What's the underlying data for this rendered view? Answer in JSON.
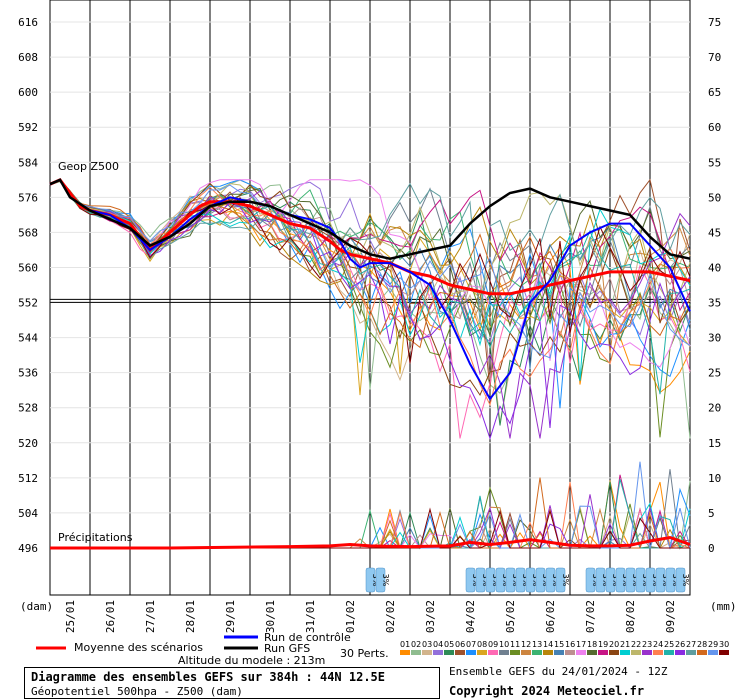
{
  "chart_data": {
    "type": "line",
    "title": "Diagramme des ensembles GEFS sur 384h : 44N 12.5E",
    "subtitle": "Géopotentiel 500hpa - Z500 (dam)",
    "run": "Ensemble GEFS du 24/01/2024 - 12Z",
    "copyright": "Copyright 2024 Meteociel.fr",
    "altitude": "Altitude du modele : 213m",
    "left_axis": {
      "unit": "(dam)",
      "range": [
        490,
        620
      ],
      "ticks": [
        "616",
        "608",
        "600",
        "592",
        "584",
        "576",
        "568",
        "560",
        "552",
        "544",
        "536",
        "528",
        "520",
        "512",
        "504",
        "496"
      ],
      "tick_values": [
        616,
        608,
        600,
        592,
        584,
        576,
        568,
        560,
        552,
        544,
        536,
        528,
        520,
        512,
        504,
        496
      ]
    },
    "right_axis": {
      "unit": "(mm)",
      "ticks": [
        "75",
        "70",
        "65",
        "60",
        "55",
        "50",
        "45",
        "40",
        "35",
        "30",
        "25",
        "20",
        "15",
        "10",
        "5",
        "0"
      ],
      "tick_values": [
        75,
        70,
        65,
        60,
        55,
        50,
        45,
        40,
        35,
        30,
        25,
        20,
        15,
        10,
        5,
        0
      ]
    },
    "x_axis": {
      "start_day": 0,
      "end_day": 16,
      "dates": [
        "25/01",
        "26/01",
        "27/01",
        "28/01",
        "29/01",
        "30/01",
        "31/01",
        "01/02",
        "02/02",
        "03/02",
        "04/02",
        "05/02",
        "06/02",
        "07/02",
        "08/02",
        "09/02"
      ],
      "date_days": [
        0.5,
        1.5,
        2.5,
        3.5,
        4.5,
        5.5,
        6.5,
        7.5,
        8.5,
        9.5,
        10.5,
        11.5,
        12.5,
        13.5,
        14.5,
        15.5
      ]
    },
    "reference_line": 552.5,
    "geop_label": "Geop Z500",
    "precip_label": "Précipitations",
    "series": [
      {
        "name": "Moyenne des scénarios",
        "color": "#ff0000",
        "x": [
          0,
          0.25,
          0.5,
          0.75,
          1,
          1.5,
          2,
          2.25,
          2.5,
          2.75,
          3,
          3.25,
          3.5,
          3.75,
          4,
          4.5,
          5,
          5.5,
          6,
          6.5,
          7,
          7.25,
          7.5,
          8,
          8.5,
          9,
          9.5,
          10,
          10.5,
          11,
          11.5,
          12,
          12.5,
          13,
          13.5,
          14,
          14.5,
          15,
          15.5,
          16
        ],
        "values": [
          579,
          580,
          577,
          574,
          573,
          572,
          570,
          567,
          564,
          566,
          568,
          570,
          572,
          574,
          575,
          575,
          574,
          572,
          570,
          569,
          566,
          564,
          563,
          562,
          561,
          559,
          558,
          556,
          555,
          554,
          554,
          555,
          556,
          557,
          558,
          559,
          559,
          559,
          558,
          557
        ]
      },
      {
        "name": "Run de contrôle",
        "color": "#0000ff",
        "x": [
          0,
          0.25,
          0.5,
          1,
          1.5,
          2,
          2.5,
          3,
          3.5,
          4,
          4.5,
          5,
          5.5,
          6,
          6.5,
          7,
          7.25,
          7.5,
          7.75,
          8,
          8.5,
          9,
          9.5,
          10,
          10.5,
          11,
          11.5,
          12,
          12.5,
          13,
          13.5,
          14,
          14.5,
          15,
          15.5,
          16
        ],
        "values": [
          579,
          580,
          576,
          573,
          572,
          569,
          564,
          567,
          571,
          574,
          576,
          575,
          574,
          572,
          571,
          569,
          566,
          562,
          560,
          561,
          561,
          559,
          556,
          548,
          538,
          530,
          536,
          552,
          557,
          565,
          568,
          570,
          570,
          565,
          560,
          550
        ]
      },
      {
        "name": "Run GFS",
        "color": "#000000",
        "x": [
          0,
          0.25,
          0.5,
          1,
          1.5,
          2,
          2.5,
          3,
          3.5,
          4,
          4.5,
          5,
          5.5,
          6,
          6.5,
          7,
          7.5,
          8,
          8.5,
          9,
          9.5,
          10,
          10.5,
          11,
          11.5,
          12,
          12.5,
          13,
          13.5,
          14,
          14.5,
          15,
          15.5,
          16
        ],
        "values": [
          579,
          580,
          576,
          573,
          571,
          569,
          565,
          567,
          570,
          574,
          575,
          575,
          574,
          572,
          570,
          568,
          565,
          563,
          562,
          563,
          564,
          565,
          570,
          574,
          577,
          578,
          576,
          575,
          574,
          573,
          572,
          567,
          563,
          562
        ]
      }
    ],
    "precip_mean": {
      "x": [
        0,
        3,
        6,
        7,
        7.5,
        8,
        9,
        10,
        10.5,
        11,
        11.5,
        12,
        12.5,
        13,
        13.5,
        14,
        14.5,
        15,
        15.5,
        16
      ],
      "values": [
        0,
        0,
        0.2,
        0.3,
        0.5,
        0.3,
        0.2,
        0.3,
        0.8,
        0.5,
        0.8,
        1.2,
        0.8,
        0.4,
        0.3,
        0.3,
        0.4,
        1.0,
        1.5,
        0.5
      ]
    },
    "percent_days": [
      8,
      8.25,
      10.5,
      10.75,
      11,
      11.25,
      11.5,
      11.75,
      12,
      12.25,
      12.5,
      12.75,
      13.5,
      13.75,
      14,
      14.25,
      14.5,
      14.75,
      15,
      15.25,
      15.5,
      15.75
    ],
    "percent_label": "3%",
    "legend": {
      "mean": "Moyenne des scénarios",
      "control": "Run de contrôle",
      "gfs": "Run GFS",
      "perts": "30 Perts."
    },
    "members": [
      "01",
      "02",
      "03",
      "04",
      "05",
      "06",
      "07",
      "08",
      "09",
      "10",
      "11",
      "12",
      "13",
      "14",
      "15",
      "16",
      "17",
      "18",
      "19",
      "20",
      "21",
      "22",
      "23",
      "24",
      "25",
      "26",
      "27",
      "28",
      "29",
      "30"
    ],
    "member_colors": [
      "#ff8c00",
      "#8fbc8f",
      "#d2b48c",
      "#9370db",
      "#2e8b57",
      "#a0522d",
      "#1e90ff",
      "#daa520",
      "#ff69b4",
      "#708090",
      "#6b8e23",
      "#cd853f",
      "#3cb371",
      "#b8860b",
      "#4682b4",
      "#bc8f8f",
      "#ee82ee",
      "#556b2f",
      "#c71585",
      "#8b4513",
      "#00ced1",
      "#bdb76b",
      "#9932cc",
      "#ff7f50",
      "#20b2aa",
      "#8a2be2",
      "#5f9ea0",
      "#d2691e",
      "#6495ed",
      "#800000"
    ]
  }
}
